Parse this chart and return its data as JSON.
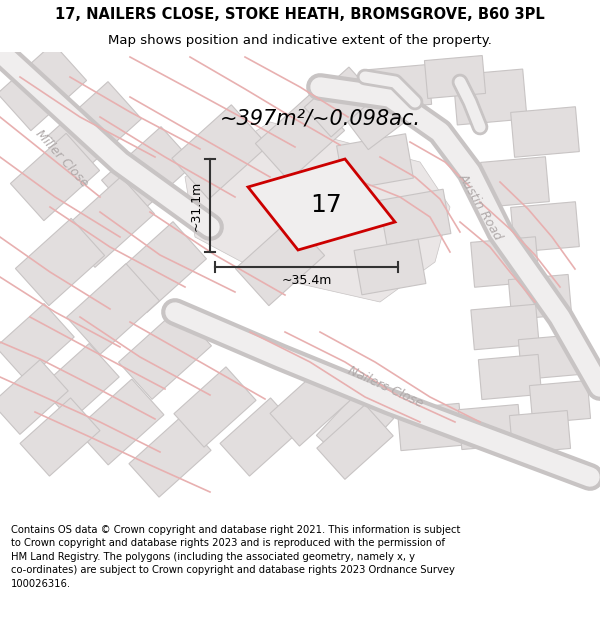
{
  "title_line1": "17, NAILERS CLOSE, STOKE HEATH, BROMSGROVE, B60 3PL",
  "title_line2": "Map shows position and indicative extent of the property.",
  "area_text": "~397m²/~0.098ac.",
  "label_17": "17",
  "dim_height": "~31.1m",
  "dim_width": "~35.4m",
  "road_label_austin": "Austin Road",
  "road_label_nailers": "Nailers Close",
  "road_label_miller": "Miller Close",
  "footer_lines": [
    "Contains OS data © Crown copyright and database right 2021. This information is subject",
    "to Crown copyright and database rights 2023 and is reproduced with the permission of",
    "HM Land Registry. The polygons (including the associated geometry, namely x, y",
    "co-ordinates) are subject to Crown copyright and database rights 2023 Ordnance Survey",
    "100026316."
  ],
  "map_bg": "#f7f4f4",
  "plot_outline": "#cc0000",
  "plot_fill": "#f0eeee",
  "block_fill": "#e2dede",
  "block_outline": "#c8c4c4",
  "lane_color": "#e8b0b0",
  "road_fill": "#f0eeee",
  "road_outline": "#c8c4c4",
  "dim_color": "#333333",
  "road_label_color": "#b0aaaa",
  "title_fontsize": 10.5,
  "subtitle_fontsize": 9.5,
  "area_fontsize": 15,
  "label_fontsize": 18,
  "dim_fontsize": 9,
  "road_label_fontsize": 9,
  "footer_fontsize": 7.2
}
